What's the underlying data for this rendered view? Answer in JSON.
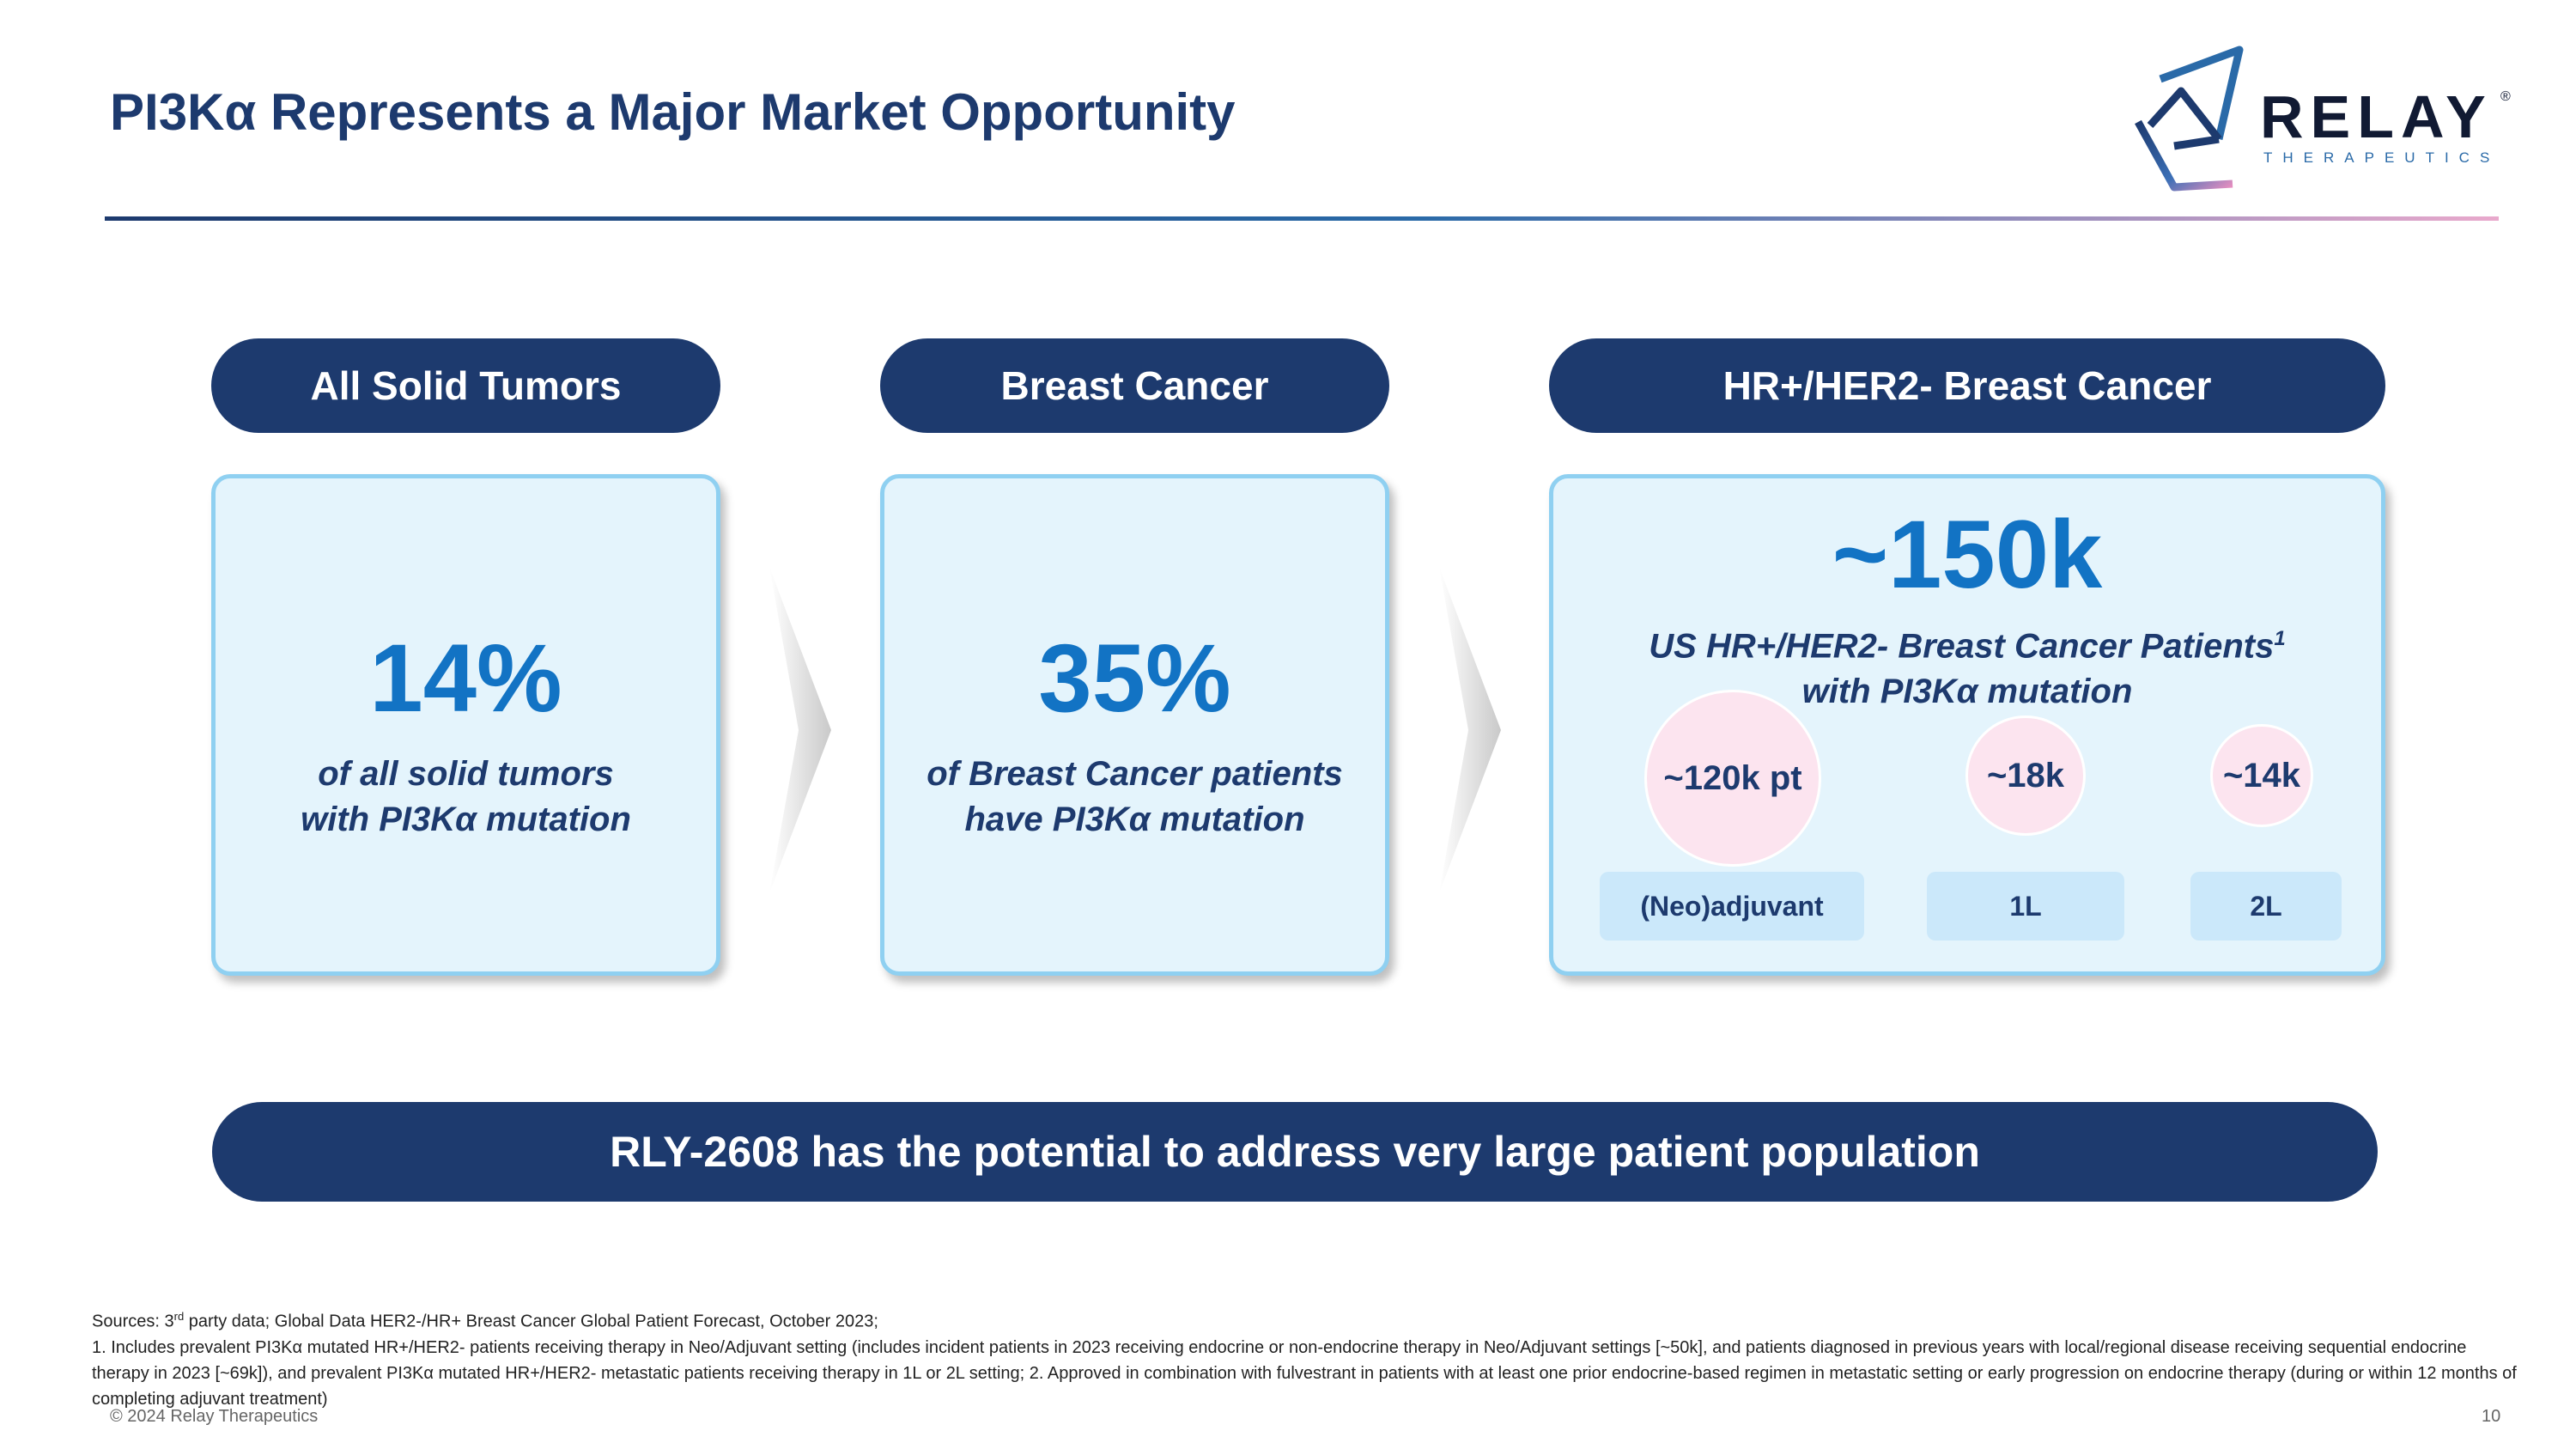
{
  "title": "PI3Kα Represents a Major Market Opportunity",
  "logo": {
    "word": "RELAY",
    "reg": "®",
    "sub": "THERAPEUTICS"
  },
  "colors": {
    "navy": "#1d3a6e",
    "accent_blue": "#1273c4",
    "card_fill": "#e4f4fc",
    "card_border": "#8fd0f1",
    "pink": "#fce4ef",
    "label_fill": "#cbe8fa"
  },
  "columns": [
    {
      "header": "All Solid Tumors",
      "value": "14%",
      "desc_line1": "of all solid tumors",
      "desc_line2": "with PI3Kα mutation"
    },
    {
      "header": "Breast Cancer",
      "value": "35%",
      "desc_line1": "of Breast Cancer patients",
      "desc_line2": "have PI3Kα mutation"
    },
    {
      "header": "HR+/HER2- Breast Cancer",
      "value": "~150k",
      "desc_line1": "US HR+/HER2- Breast Cancer Patients",
      "desc_sup": "1",
      "desc_line2": "with PI3Kα mutation",
      "segments": [
        {
          "count": "~120k pt",
          "label": "(Neo)adjuvant"
        },
        {
          "count": "~18k",
          "label": "1L"
        },
        {
          "count": "~14k",
          "label": "2L"
        }
      ]
    }
  ],
  "banner": "RLY-2608 has the potential to address very large patient population",
  "footnotes": {
    "sources_prefix": "Sources: 3",
    "sources_sup": "rd",
    "sources_rest": " party data; Global Data HER2-/HR+ Breast Cancer Global Patient Forecast, October 2023;",
    "note1": "1. Includes prevalent PI3Kα mutated HR+/HER2- patients receiving therapy in Neo/Adjuvant setting (includes incident patients in 2023 receiving endocrine or non-endocrine therapy in Neo/Adjuvant settings [~50k], and patients diagnosed in previous years with local/regional disease receiving sequential endocrine therapy in 2023 [~69k]), and prevalent PI3Kα mutated HR+/HER2- metastatic patients receiving therapy in 1L or 2L setting;  2. Approved in combination with fulvestrant in patients with at least one prior endocrine-based regimen in metastatic setting or early progression on endocrine therapy (during or within 12 months of completing adjuvant treatment)"
  },
  "copyright": "© 2024 Relay Therapeutics",
  "page_number": "10"
}
